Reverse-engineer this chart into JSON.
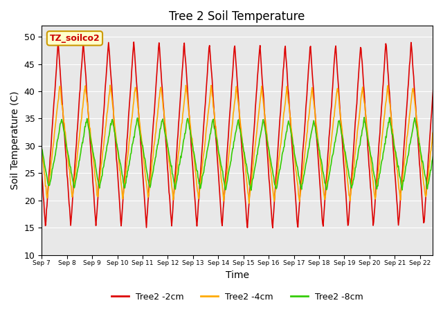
{
  "title": "Tree 2 Soil Temperature",
  "xlabel": "Time",
  "ylabel": "Soil Temperature (C)",
  "ylim": [
    10,
    52
  ],
  "annotation_text": "TZ_soilco2",
  "annotation_bg": "#ffffcc",
  "annotation_border": "#cc9900",
  "bg_color": "#e8e8e8",
  "series": {
    "Tree2 -2cm": {
      "color": "#dd0000",
      "lw": 1.2
    },
    "Tree2 -4cm": {
      "color": "#ffaa00",
      "lw": 1.2
    },
    "Tree2 -8cm": {
      "color": "#33cc00",
      "lw": 1.2
    }
  },
  "x_tick_labels": [
    "Sep 7",
    "Sep 8",
    "Sep 9",
    "Sep 10",
    "Sep 11",
    "Sep 12",
    "Sep 13",
    "Sep 14",
    "Sep 15",
    "Sep 16",
    "Sep 17",
    "Sep 18",
    "Sep 19",
    "Sep 20",
    "Sep 21",
    "Sep 22"
  ],
  "y_ticks": [
    10,
    15,
    20,
    25,
    30,
    35,
    40,
    45,
    50
  ],
  "num_days": 16
}
